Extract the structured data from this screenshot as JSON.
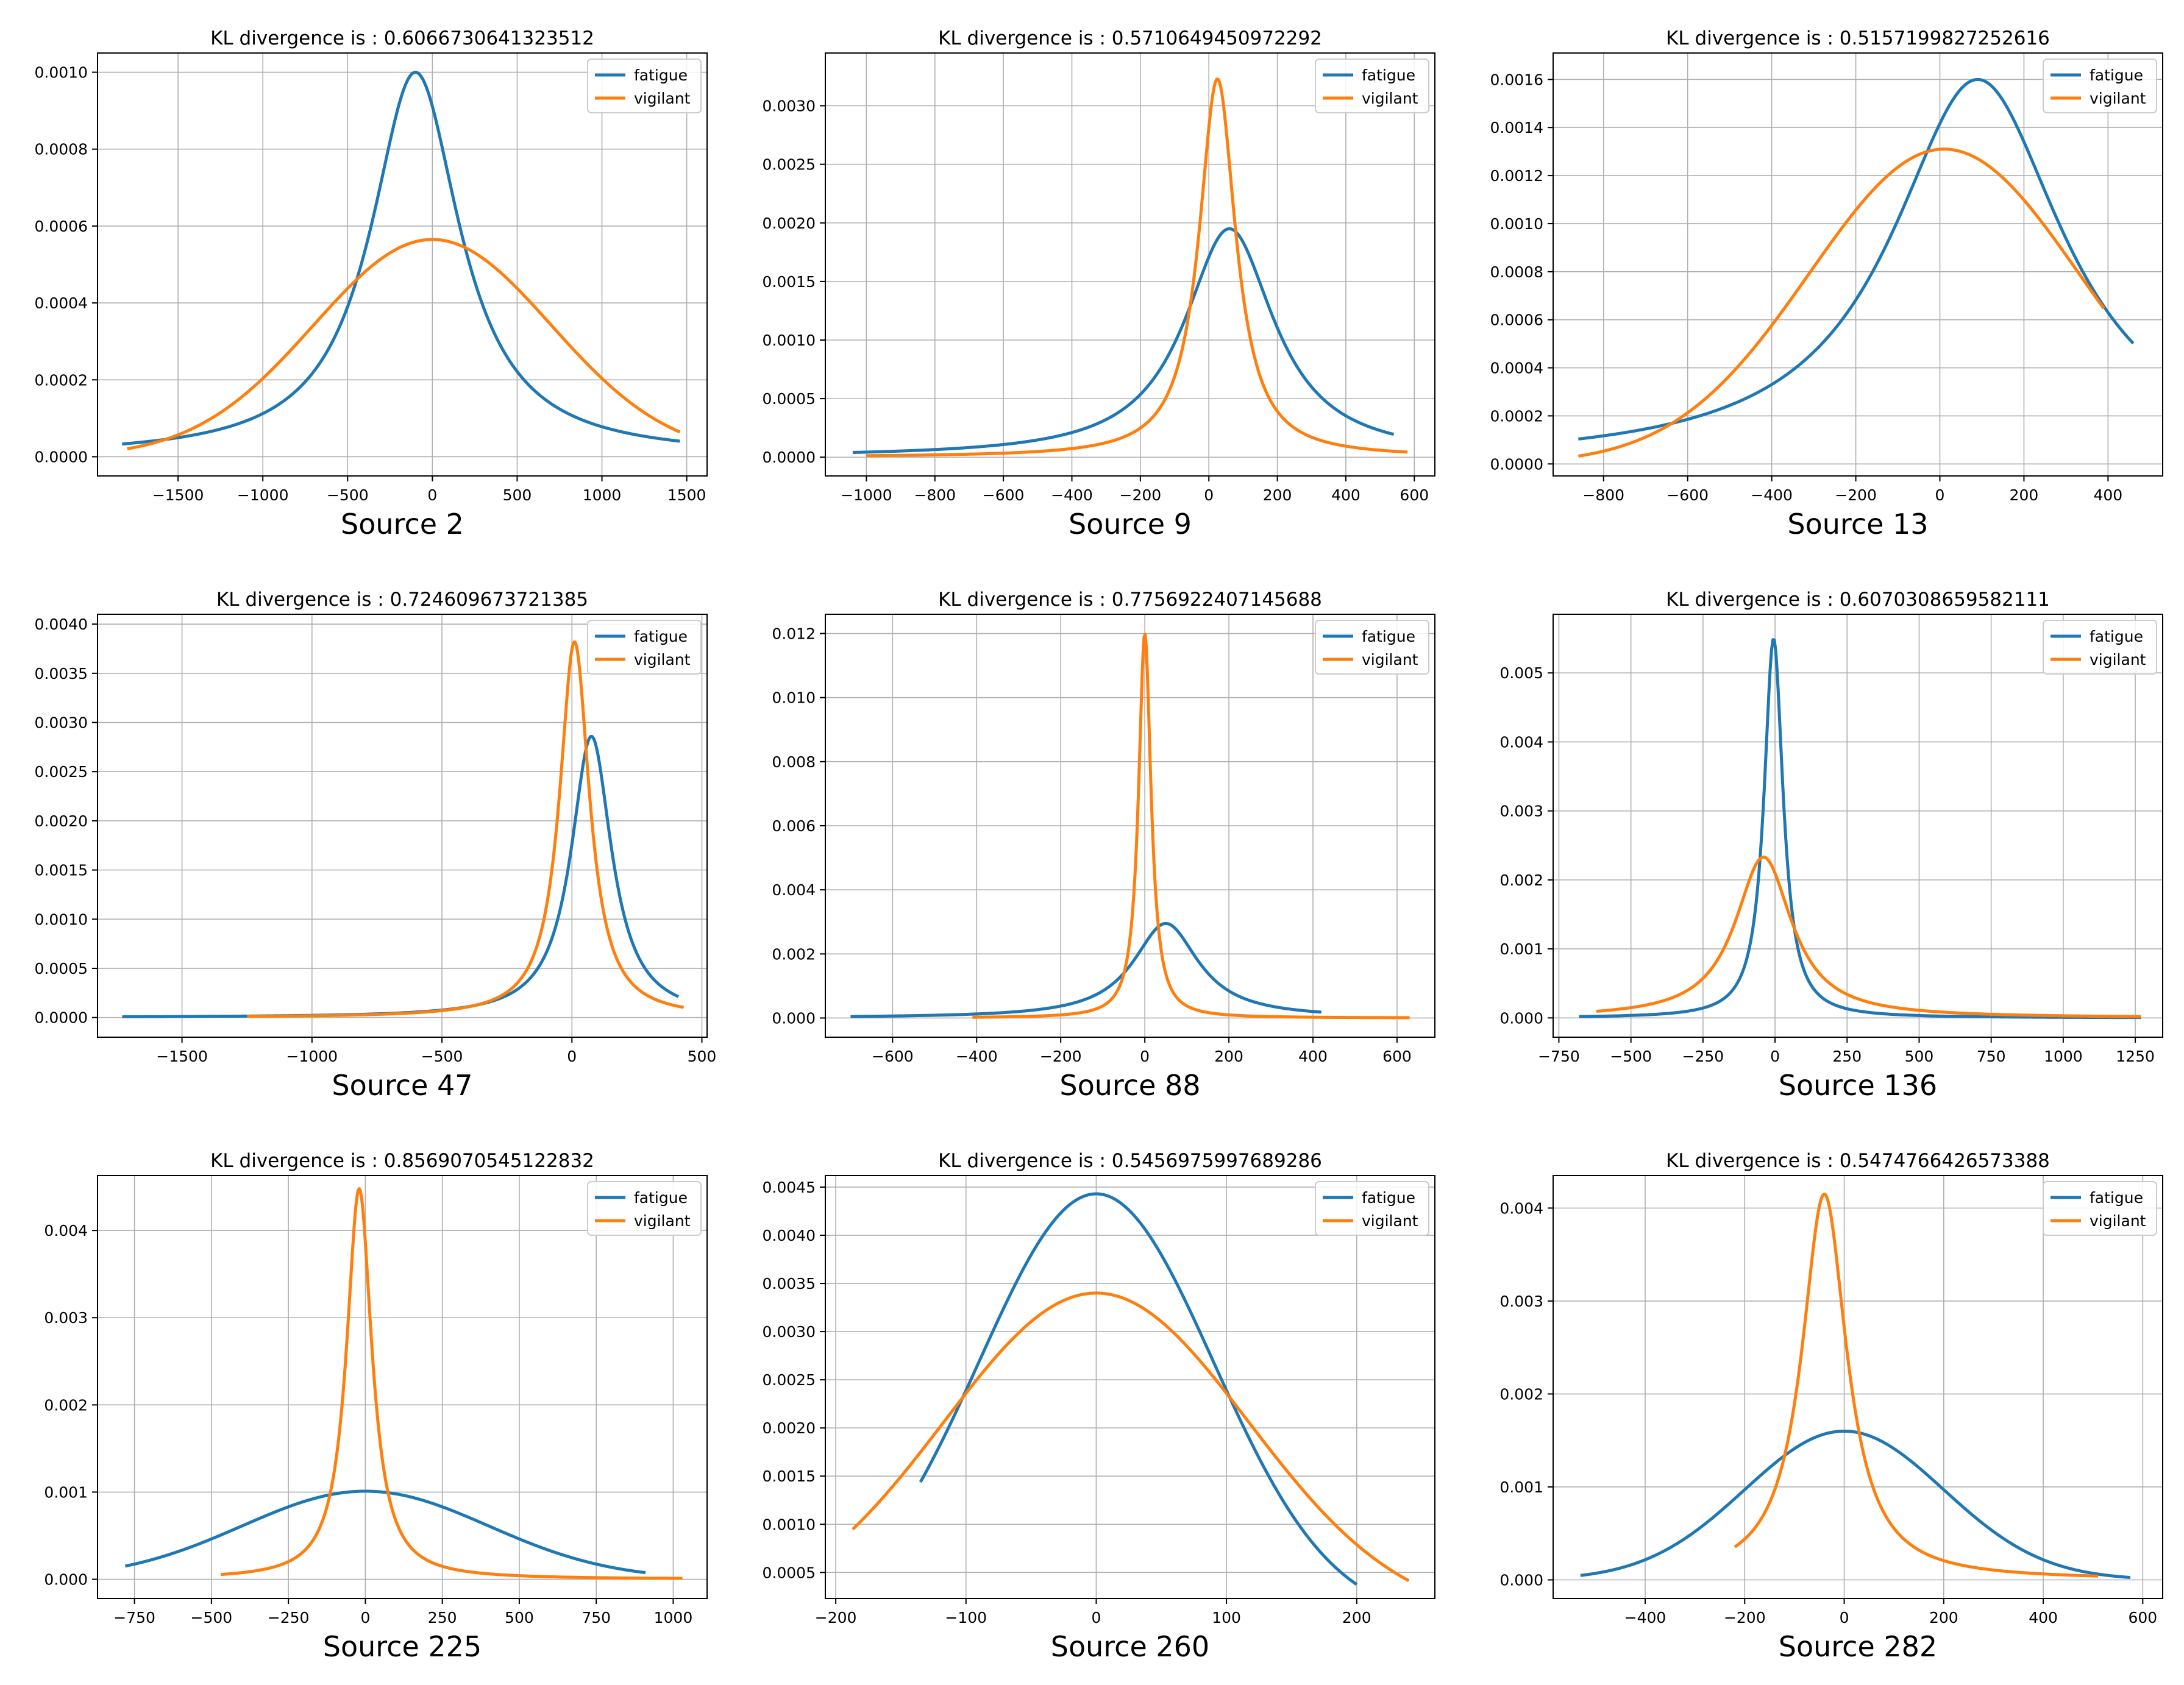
{
  "colors": {
    "fatigue": "#1f77b4",
    "vigilant": "#ff7f0e",
    "grid": "#b0b0b0",
    "frame": "#000000"
  },
  "chart_data": [
    {
      "type": "line",
      "title": "KL divergence is : 0.6066730641323512",
      "xlabel": "Source 2",
      "xlim": [
        -1975,
        1620
      ],
      "ylim": [
        -5e-05,
        0.00105
      ],
      "xticks": [
        -1500,
        -1000,
        -500,
        0,
        500,
        1000,
        1500
      ],
      "xtick_labels": [
        "−1500",
        "−1000",
        "−500",
        "0",
        "500",
        "1000",
        "1500"
      ],
      "yticks": [
        0,
        0.0002,
        0.0004,
        0.0006,
        0.0008,
        0.001
      ],
      "ytick_labels": [
        "0.0000",
        "0.0002",
        "0.0004",
        "0.0006",
        "0.0008",
        "0.0010"
      ],
      "legend": "top-right",
      "series": [
        {
          "name": "fatigue",
          "shape": "cauchy",
          "mu": -100,
          "gamma": 320,
          "peak": 0.001,
          "x0": -1830,
          "x1": 1460
        },
        {
          "name": "vigilant",
          "shape": "gauss",
          "mu": 0,
          "sigma": 700,
          "peak": 0.000565,
          "x0": -1800,
          "x1": 1460
        }
      ]
    },
    {
      "type": "line",
      "title": "KL divergence is : 0.5710649450972292",
      "xlabel": "Source 9",
      "xlim": [
        -1120,
        660
      ],
      "ylim": [
        -0.00016,
        0.00345
      ],
      "xticks": [
        -1000,
        -800,
        -600,
        -400,
        -200,
        0,
        200,
        400,
        600
      ],
      "xtick_labels": [
        "−1000",
        "−800",
        "−600",
        "−400",
        "−200",
        "0",
        "200",
        "400",
        "600"
      ],
      "yticks": [
        0,
        0.0005,
        0.001,
        0.0015,
        0.002,
        0.0025,
        0.003
      ],
      "ytick_labels": [
        "0.0000",
        "0.0005",
        "0.0010",
        "0.0015",
        "0.0020",
        "0.0025",
        "0.0030"
      ],
      "legend": "top-right",
      "series": [
        {
          "name": "fatigue",
          "shape": "cauchy",
          "mu": 60,
          "gamma": 160,
          "peak": 0.00195,
          "x0": -1040,
          "x1": 540
        },
        {
          "name": "vigilant",
          "shape": "cauchy",
          "mu": 25,
          "gamma": 65,
          "peak": 0.00323,
          "x0": -1000,
          "x1": 580
        }
      ]
    },
    {
      "type": "line",
      "title": "KL divergence is : 0.5157199827252616",
      "xlabel": "Source 13",
      "xlim": [
        -920,
        530
      ],
      "ylim": [
        -5e-05,
        0.00171
      ],
      "xticks": [
        -800,
        -600,
        -400,
        -200,
        0,
        200,
        400
      ],
      "xtick_labels": [
        "−800",
        "−600",
        "−400",
        "−200",
        "0",
        "200",
        "400"
      ],
      "yticks": [
        0,
        0.0002,
        0.0004,
        0.0006,
        0.0008,
        0.001,
        0.0012,
        0.0014,
        0.0016
      ],
      "ytick_labels": [
        "0.0000",
        "0.0002",
        "0.0004",
        "0.0006",
        "0.0008",
        "0.0010",
        "0.0012",
        "0.0014",
        "0.0016"
      ],
      "legend": "top-right",
      "series": [
        {
          "name": "fatigue",
          "shape": "cauchy",
          "mu": 90,
          "gamma": 250,
          "peak": 0.0016,
          "x0": -860,
          "x1": 460
        },
        {
          "name": "vigilant",
          "shape": "gauss",
          "mu": 10,
          "sigma": 320,
          "peak": 0.00131,
          "x0": -860,
          "x1": 390
        }
      ]
    },
    {
      "type": "line",
      "title": "KL divergence is : 0.724609673721385",
      "xlabel": "Source 47",
      "xlim": [
        -1825,
        520
      ],
      "ylim": [
        -0.0002,
        0.0041
      ],
      "xticks": [
        -1500,
        -1000,
        -500,
        0,
        500
      ],
      "xtick_labels": [
        "−1500",
        "−1000",
        "−500",
        "0",
        "500"
      ],
      "yticks": [
        0,
        0.0005,
        0.001,
        0.0015,
        0.002,
        0.0025,
        0.003,
        0.0035,
        0.004
      ],
      "ytick_labels": [
        "0.0000",
        "0.0005",
        "0.0010",
        "0.0015",
        "0.0020",
        "0.0025",
        "0.0030",
        "0.0035",
        "0.0040"
      ],
      "legend": "top-right",
      "series": [
        {
          "name": "fatigue",
          "shape": "cauchy",
          "mu": 75,
          "gamma": 95,
          "peak": 0.00286,
          "x0": -1730,
          "x1": 410
        },
        {
          "name": "vigilant",
          "shape": "cauchy",
          "mu": 10,
          "gamma": 70,
          "peak": 0.00382,
          "x0": -1250,
          "x1": 430
        }
      ]
    },
    {
      "type": "line",
      "title": "KL divergence is : 0.7756922407145688",
      "xlabel": "Source 88",
      "xlim": [
        -760,
        690
      ],
      "ylim": [
        -0.0006,
        0.0126
      ],
      "xticks": [
        -600,
        -400,
        -200,
        0,
        200,
        400,
        600
      ],
      "xtick_labels": [
        "−600",
        "−400",
        "−200",
        "0",
        "200",
        "400",
        "600"
      ],
      "yticks": [
        0,
        0.002,
        0.004,
        0.006,
        0.008,
        0.01,
        0.012
      ],
      "ytick_labels": [
        "0.000",
        "0.002",
        "0.004",
        "0.006",
        "0.008",
        "0.010",
        "0.012"
      ],
      "legend": "top-right",
      "series": [
        {
          "name": "fatigue",
          "shape": "cauchy",
          "mu": 50,
          "gamma": 95,
          "peak": 0.00295,
          "x0": -700,
          "x1": 420
        },
        {
          "name": "vigilant",
          "shape": "cauchy",
          "mu": 0,
          "gamma": 18,
          "peak": 0.012,
          "x0": -410,
          "x1": 630
        }
      ]
    },
    {
      "type": "line",
      "title": "KL divergence is : 0.6070308659582111",
      "xlabel": "Source 136",
      "xlim": [
        -770,
        1345
      ],
      "ylim": [
        -0.00028,
        0.00585
      ],
      "xticks": [
        -750,
        -500,
        -250,
        0,
        250,
        500,
        750,
        1000,
        1250
      ],
      "xtick_labels": [
        "−750",
        "−500",
        "−250",
        "0",
        "250",
        "500",
        "750",
        "1000",
        "1250"
      ],
      "yticks": [
        0,
        0.001,
        0.002,
        0.003,
        0.004,
        0.005
      ],
      "ytick_labels": [
        "0.000",
        "0.001",
        "0.002",
        "0.003",
        "0.004",
        "0.005"
      ],
      "legend": "top-right",
      "series": [
        {
          "name": "fatigue",
          "shape": "cauchy",
          "mu": -5,
          "gamma": 40,
          "peak": 0.0055,
          "x0": -680,
          "x1": 1270
        },
        {
          "name": "vigilant",
          "shape": "cauchy",
          "mu": -40,
          "gamma": 120,
          "peak": 0.00233,
          "x0": -620,
          "x1": 1270
        }
      ]
    },
    {
      "type": "line",
      "title": "KL divergence is : 0.8569070545122832",
      "xlabel": "Source 225",
      "xlim": [
        -870,
        1110
      ],
      "ylim": [
        -0.00022,
        0.00463
      ],
      "xticks": [
        -750,
        -500,
        -250,
        0,
        250,
        500,
        750,
        1000
      ],
      "xtick_labels": [
        "−750",
        "−500",
        "−250",
        "0",
        "250",
        "500",
        "750",
        "1000"
      ],
      "yticks": [
        0,
        0.001,
        0.002,
        0.003,
        0.004
      ],
      "ytick_labels": [
        "0.000",
        "0.001",
        "0.002",
        "0.003",
        "0.004"
      ],
      "legend": "top-right",
      "series": [
        {
          "name": "fatigue",
          "shape": "gauss",
          "mu": 0,
          "sigma": 400,
          "peak": 0.00101,
          "x0": -780,
          "x1": 910
        },
        {
          "name": "vigilant",
          "shape": "cauchy",
          "mu": -20,
          "gamma": 50,
          "peak": 0.00448,
          "x0": -470,
          "x1": 1030
        }
      ]
    },
    {
      "type": "line",
      "title": "KL divergence is : 0.5456975997689286",
      "xlabel": "Source 260",
      "xlim": [
        -208,
        260
      ],
      "ylim": [
        0.00023,
        0.00462
      ],
      "xticks": [
        -200,
        -100,
        0,
        100,
        200
      ],
      "xtick_labels": [
        "−200",
        "−100",
        "0",
        "100",
        "200"
      ],
      "yticks": [
        0.0005,
        0.001,
        0.0015,
        0.002,
        0.0025,
        0.003,
        0.0035,
        0.004,
        0.0045
      ],
      "ytick_labels": [
        "0.0005",
        "0.0010",
        "0.0015",
        "0.0020",
        "0.0025",
        "0.0030",
        "0.0035",
        "0.0040",
        "0.0045"
      ],
      "legend": "top-right",
      "series": [
        {
          "name": "fatigue",
          "shape": "gauss",
          "mu": 0,
          "sigma": 90,
          "peak": 0.00443,
          "x0": -135,
          "x1": 200
        },
        {
          "name": "vigilant",
          "shape": "gauss",
          "mu": 0,
          "sigma": 117,
          "peak": 0.0034,
          "x0": -187,
          "x1": 240
        }
      ]
    },
    {
      "type": "line",
      "title": "KL divergence is : 0.5474766426573388",
      "xlabel": "Source 282",
      "xlim": [
        -585,
        640
      ],
      "ylim": [
        -0.0002,
        0.00435
      ],
      "xticks": [
        -400,
        -200,
        0,
        200,
        400,
        600
      ],
      "xtick_labels": [
        "−400",
        "−200",
        "0",
        "200",
        "400",
        "600"
      ],
      "yticks": [
        0,
        0.001,
        0.002,
        0.003,
        0.004
      ],
      "ytick_labels": [
        "0.000",
        "0.001",
        "0.002",
        "0.003",
        "0.004"
      ],
      "legend": "top-right",
      "series": [
        {
          "name": "fatigue",
          "shape": "gauss",
          "mu": 0,
          "sigma": 200,
          "peak": 0.0016,
          "x0": -530,
          "x1": 575
        },
        {
          "name": "vigilant",
          "shape": "cauchy",
          "mu": -40,
          "gamma": 55,
          "peak": 0.00415,
          "x0": -220,
          "x1": 510
        }
      ]
    }
  ]
}
